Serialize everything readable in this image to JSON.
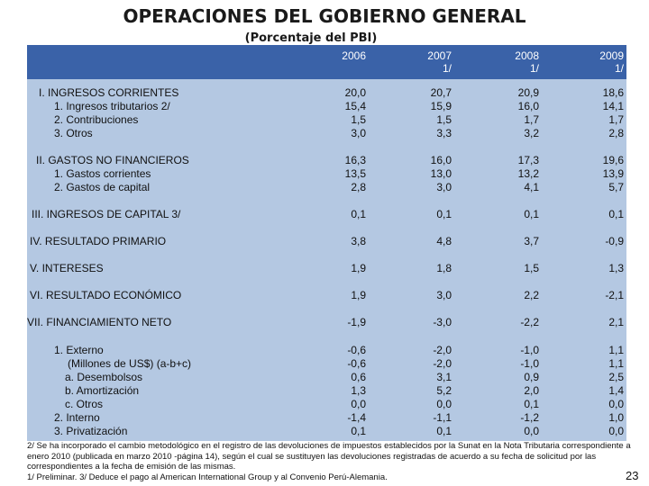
{
  "title": "OPERACIONES DEL GOBIERNO GENERAL",
  "subtitle": "(Porcentaje del PBI)",
  "years": [
    {
      "year": "2006",
      "note": ""
    },
    {
      "year": "2007",
      "note": "1/"
    },
    {
      "year": "2008",
      "note": "1/"
    },
    {
      "year": "2009",
      "note": "1/"
    }
  ],
  "rows": [
    {
      "label": "I. INGRESOS CORRIENTES",
      "values": [
        "20,0",
        "20,7",
        "20,9",
        "18,6"
      ]
    },
    {
      "label": "1. Ingresos tributarios 2/",
      "values": [
        "15,4",
        "15,9",
        "16,0",
        "14,1"
      ]
    },
    {
      "label": "2. Contribuciones",
      "values": [
        "1,5",
        "1,5",
        "1,7",
        "1,7"
      ]
    },
    {
      "label": "3. Otros",
      "values": [
        "3,0",
        "3,3",
        "3,2",
        "2,8"
      ]
    },
    {
      "label": "II. GASTOS NO FINANCIEROS",
      "values": [
        "16,3",
        "16,0",
        "17,3",
        "19,6"
      ]
    },
    {
      "label": "1. Gastos corrientes",
      "values": [
        "13,5",
        "13,0",
        "13,2",
        "13,9"
      ]
    },
    {
      "label": "2. Gastos de capital",
      "values": [
        "2,8",
        "3,0",
        "4,1",
        "5,7"
      ]
    },
    {
      "label": "III. INGRESOS DE CAPITAL 3/",
      "values": [
        "0,1",
        "0,1",
        "0,1",
        "0,1"
      ]
    },
    {
      "label": "IV. RESULTADO PRIMARIO",
      "values": [
        "3,8",
        "4,8",
        "3,7",
        "-0,9"
      ]
    },
    {
      "label": "V. INTERESES",
      "values": [
        "1,9",
        "1,8",
        "1,5",
        "1,3"
      ]
    },
    {
      "label": "VI. RESULTADO ECONÓMICO",
      "values": [
        "1,9",
        "3,0",
        "2,2",
        "-2,1"
      ]
    },
    {
      "label": "VII. FINANCIAMIENTO NETO",
      "values": [
        "-1,9",
        "-3,0",
        "-2,2",
        "2,1"
      ]
    },
    {
      "label": "1. Externo",
      "values": [
        "-0,6",
        "-2,0",
        "-1,0",
        "1,1"
      ]
    },
    {
      "label": "(Millones de US$) (a-b+c)",
      "values": [
        "-0,6",
        "-2,0",
        "-1,0",
        "1,1"
      ]
    },
    {
      "label": "a. Desembolsos",
      "values": [
        "0,6",
        "3,1",
        "0,9",
        "2,5"
      ]
    },
    {
      "label": "b. Amortización",
      "values": [
        "1,3",
        "5,2",
        "2,0",
        "1,4"
      ]
    },
    {
      "label": "c. Otros",
      "values": [
        "0,0",
        "0,0",
        "0,1",
        "0,0"
      ]
    },
    {
      "label": "2. Interno",
      "values": [
        "-1,4",
        "-1,1",
        "-1,2",
        "1,0"
      ]
    },
    {
      "label": "3. Privatización",
      "values": [
        "0,1",
        "0,1",
        "0,0",
        "0,0"
      ]
    }
  ],
  "notes": [
    "2/ Se ha incorporado el cambio metodológico en el registro de las devoluciones de impuestos establecidos por la Sunat en la Nota Tributaria correspondiente a enero 2010 (publicada en marzo 2010 -página 14), según el cual se sustituyen las devoluciones registradas de acuerdo a su fecha de solicitud por las correspondientes a la fecha de emisión de las mismas.",
    "1/ Preliminar.   3/ Deduce el pago al American International Group y al Convenio Perú-Alemania."
  ],
  "page_number": "23"
}
